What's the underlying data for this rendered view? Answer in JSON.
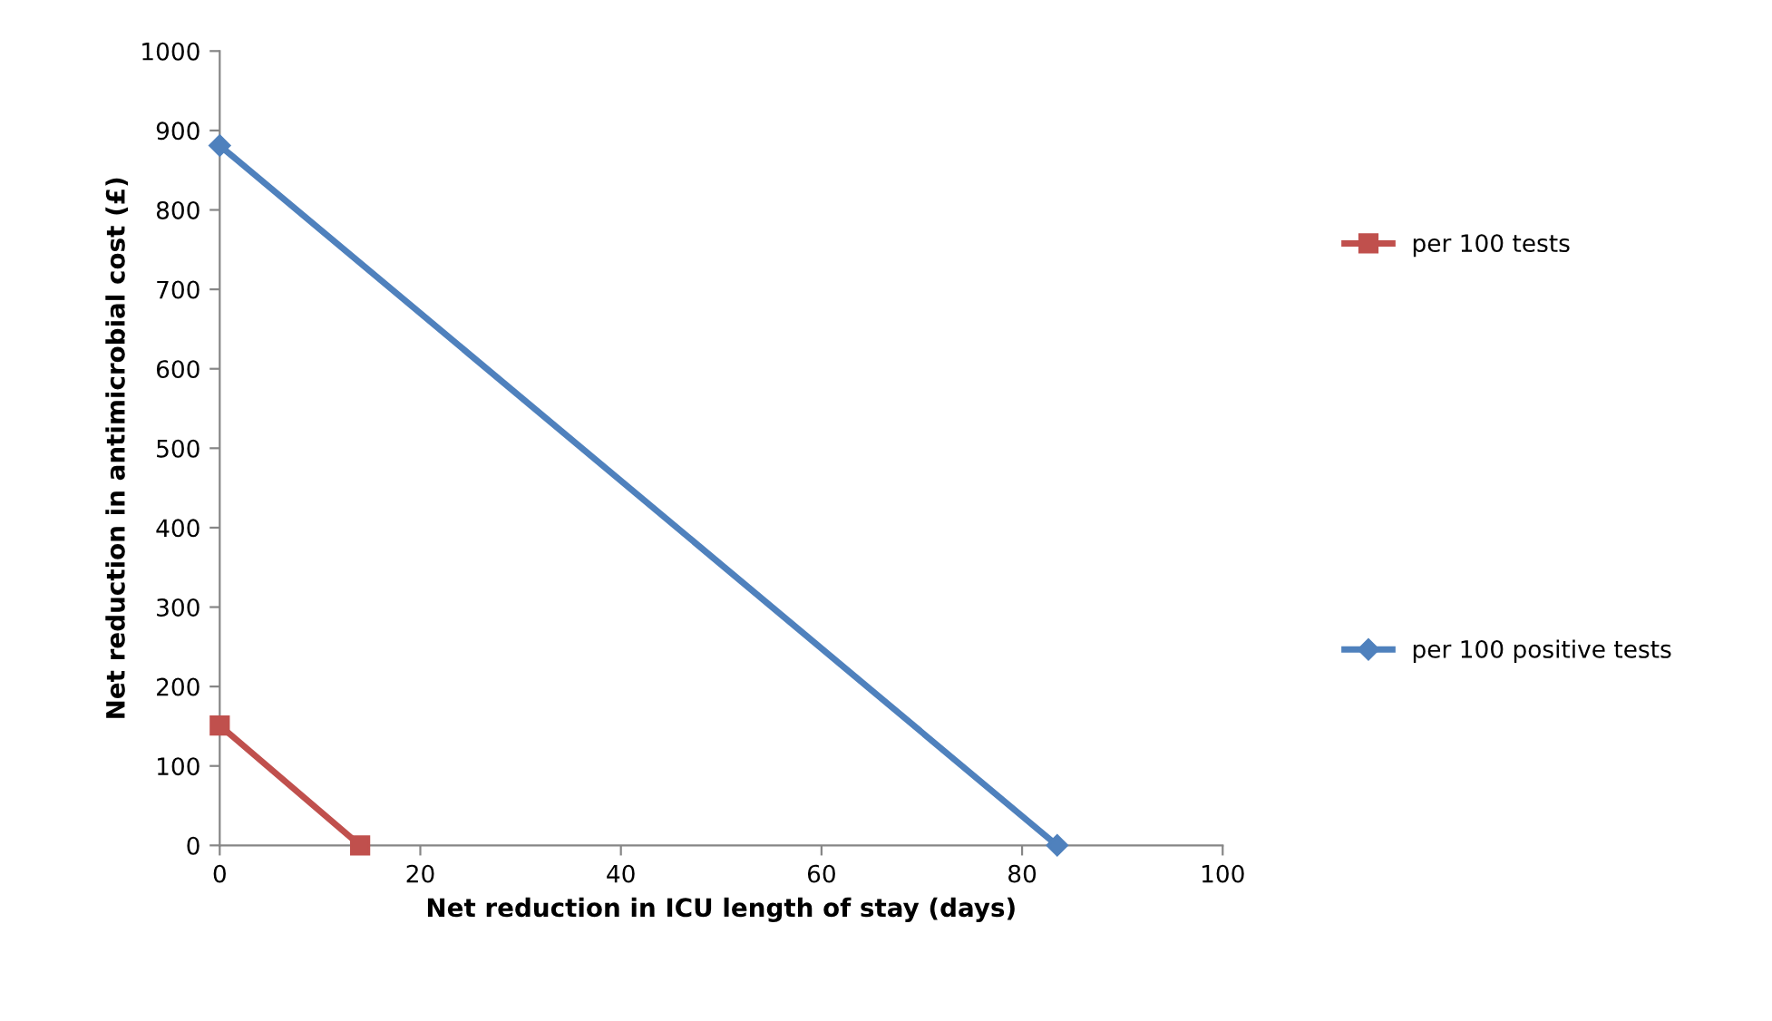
{
  "chart_data": {
    "type": "line",
    "xlabel": "Net reduction in ICU length of stay (days)",
    "ylabel": "Net reduction in antimicrobial cost (£)",
    "series": [
      {
        "name": "per 100 tests",
        "color": "#c0504d",
        "marker": "square",
        "x": [
          0,
          14
        ],
        "values": [
          151,
          0
        ]
      },
      {
        "name": "per 100 positive tests",
        "color": "#4f81bd",
        "marker": "diamond",
        "x": [
          0,
          83.5
        ],
        "values": [
          881,
          0
        ]
      }
    ],
    "xlim": [
      0,
      100
    ],
    "xticks": [
      0,
      20,
      40,
      60,
      80,
      100
    ],
    "ylim": [
      0,
      1000
    ],
    "yticks": [
      0,
      100,
      200,
      300,
      400,
      500,
      600,
      700,
      800,
      900,
      1000
    ],
    "grid": false,
    "legend": "right",
    "line_style": "solid"
  }
}
